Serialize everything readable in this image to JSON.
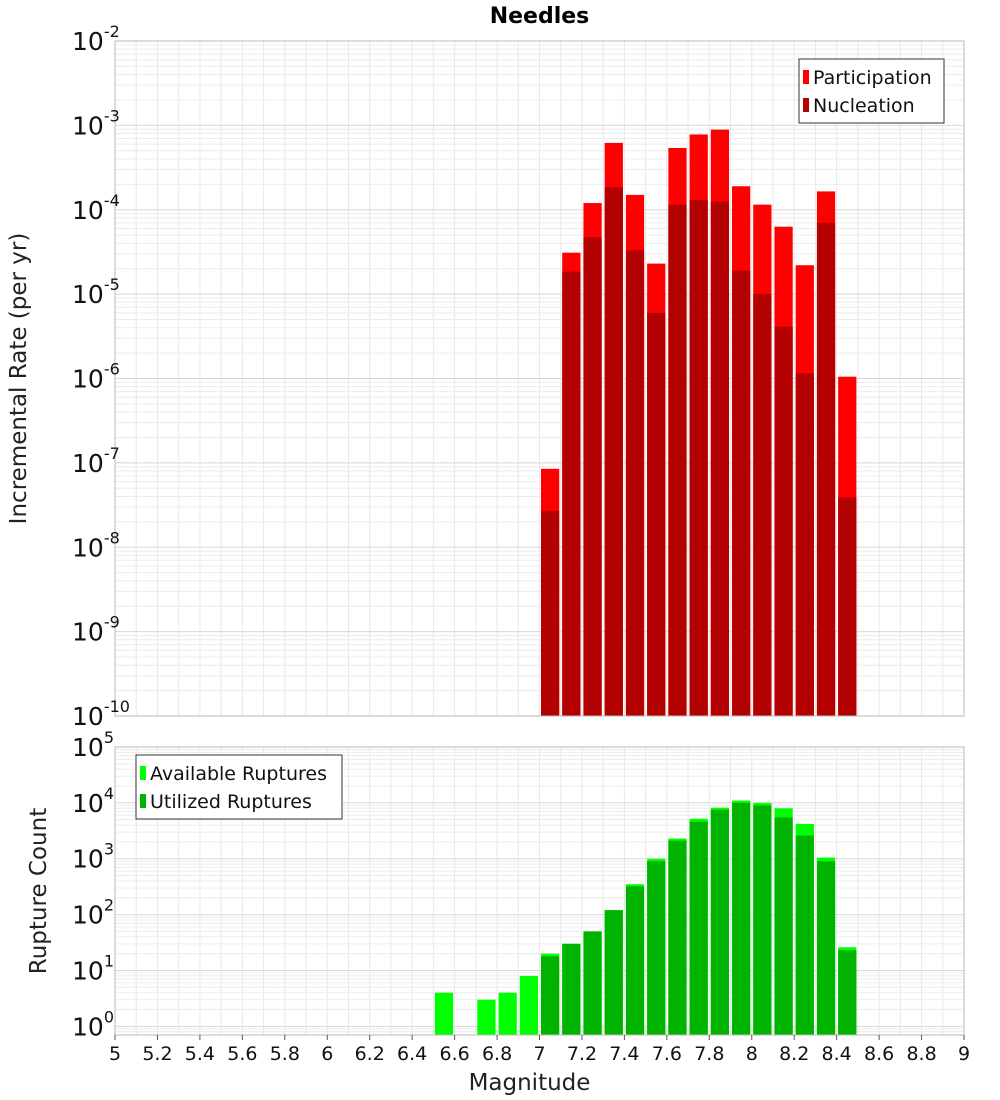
{
  "chart_data": [
    {
      "type": "bar",
      "title": "Needles",
      "xlabel": "",
      "ylabel": "Incremental Rate (per yr)",
      "xlim": [
        5,
        9
      ],
      "ylim": [
        1e-10,
        0.01
      ],
      "yscale": "log",
      "grid": true,
      "legend_position": "top-right",
      "bin_width": 0.1,
      "ytick_exponents": [
        "-10",
        "-9",
        "-8",
        "-7",
        "-6",
        "-5",
        "-4",
        "-3",
        "-2"
      ],
      "series": [
        {
          "name": "Participation",
          "color": "#ff0000",
          "x": [
            7.05,
            7.15,
            7.25,
            7.35,
            7.45,
            7.55,
            7.65,
            7.75,
            7.85,
            7.95,
            8.05,
            8.15,
            8.25,
            8.35,
            8.45
          ],
          "values": [
            8.5e-08,
            3.1e-05,
            0.00012,
            0.00062,
            0.00015,
            2.3e-05,
            0.00054,
            0.00078,
            0.00089,
            0.00019,
            0.000115,
            6.3e-05,
            2.2e-05,
            0.000165,
            1.05e-06
          ]
        },
        {
          "name": "Nucleation",
          "color": "#b30000",
          "x": [
            7.05,
            7.15,
            7.25,
            7.35,
            7.45,
            7.55,
            7.65,
            7.75,
            7.85,
            7.95,
            8.05,
            8.15,
            8.25,
            8.35,
            8.45
          ],
          "values": [
            2.7e-08,
            1.85e-05,
            4.7e-05,
            0.000185,
            3.3e-05,
            6e-06,
            0.000115,
            0.00013,
            0.000125,
            1.9e-05,
            1e-05,
            4.1e-06,
            1.15e-06,
            7e-05,
            3.9e-08
          ]
        }
      ]
    },
    {
      "type": "bar",
      "title": "",
      "xlabel": "Magnitude",
      "ylabel": "Rupture Count",
      "xlim": [
        5,
        9
      ],
      "ylim": [
        0.7,
        100000
      ],
      "yscale": "log",
      "grid": true,
      "legend_position": "top-left",
      "bin_width": 0.1,
      "xticks": [
        "5",
        "5.2",
        "5.4",
        "5.6",
        "5.8",
        "6",
        "6.2",
        "6.4",
        "6.6",
        "6.8",
        "7",
        "7.2",
        "7.4",
        "7.6",
        "7.8",
        "8",
        "8.2",
        "8.4",
        "8.6",
        "8.8",
        "9"
      ],
      "ytick_exponents": [
        "0",
        "1",
        "2",
        "3",
        "4",
        "5"
      ],
      "series": [
        {
          "name": "Available Ruptures",
          "color": "#00ff00",
          "x": [
            6.55,
            6.75,
            6.85,
            6.95,
            7.05,
            7.15,
            7.25,
            7.35,
            7.45,
            7.55,
            7.65,
            7.75,
            7.85,
            7.95,
            8.05,
            8.15,
            8.25,
            8.35,
            8.45
          ],
          "values": [
            4,
            3,
            4,
            8,
            20,
            30,
            50,
            120,
            350,
            1000,
            2300,
            5200,
            8200,
            11000,
            10000,
            8000,
            4200,
            1050,
            26
          ]
        },
        {
          "name": "Utilized Ruptures",
          "color": "#00b300",
          "x": [
            7.05,
            7.15,
            7.25,
            7.35,
            7.45,
            7.55,
            7.65,
            7.75,
            7.85,
            7.95,
            8.05,
            8.15,
            8.25,
            8.35,
            8.45
          ],
          "values": [
            18,
            30,
            50,
            120,
            320,
            900,
            2100,
            4600,
            7500,
            10000,
            9000,
            5500,
            2600,
            900,
            23
          ]
        }
      ]
    }
  ]
}
